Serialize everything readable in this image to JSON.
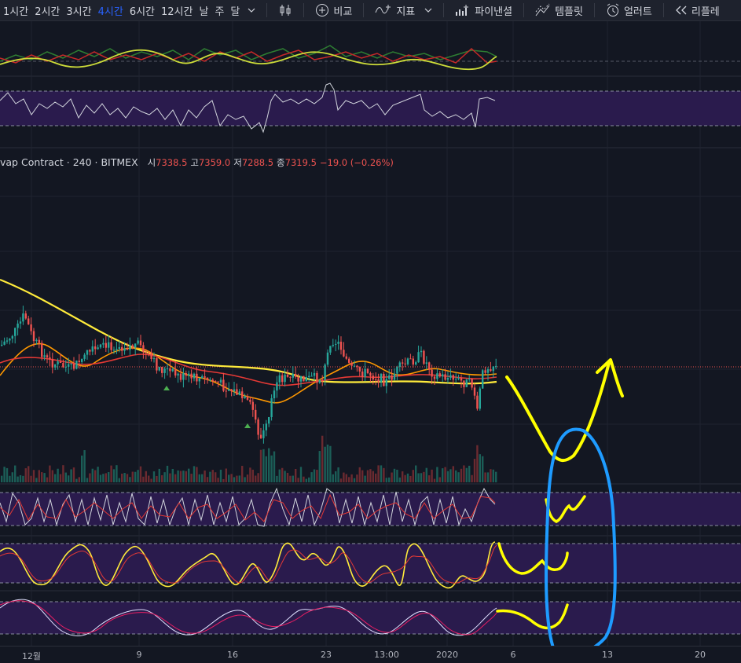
{
  "toolbar": {
    "intervals": [
      "1시간",
      "2시간",
      "3시간",
      "4시간",
      "6시간",
      "12시간",
      "날",
      "주",
      "달"
    ],
    "active_interval": "4시간",
    "buttons": {
      "compare": "비교",
      "indicators": "지표",
      "financials": "파이낸셜",
      "templates": "템플릿",
      "alert": "얼러트",
      "replay": "리플레"
    }
  },
  "legend": {
    "symbol": "vap Contract",
    "interval": "240",
    "exchange": "BITMEX",
    "open_label": "시",
    "open": "7338.5",
    "high_label": "고",
    "high": "7359.0",
    "low_label": "저",
    "low": "7288.5",
    "close_label": "종",
    "close": "7319.5",
    "change": "−19.0 (−0.26%)"
  },
  "xaxis": {
    "labels": [
      "12월",
      "9",
      "16",
      "23",
      "13:00",
      "2020",
      "6",
      "13",
      "20"
    ]
  },
  "colors": {
    "background": "#131722",
    "up": "#26a69a",
    "down": "#ef5350",
    "ma_yellow": "#ffeb3b",
    "ma_orange": "#ff9800",
    "ma_red": "#e53935",
    "oscillator_band": "#2a1b4d",
    "annotation_yellow": "#ffff00",
    "annotation_blue": "#1e9bff"
  }
}
